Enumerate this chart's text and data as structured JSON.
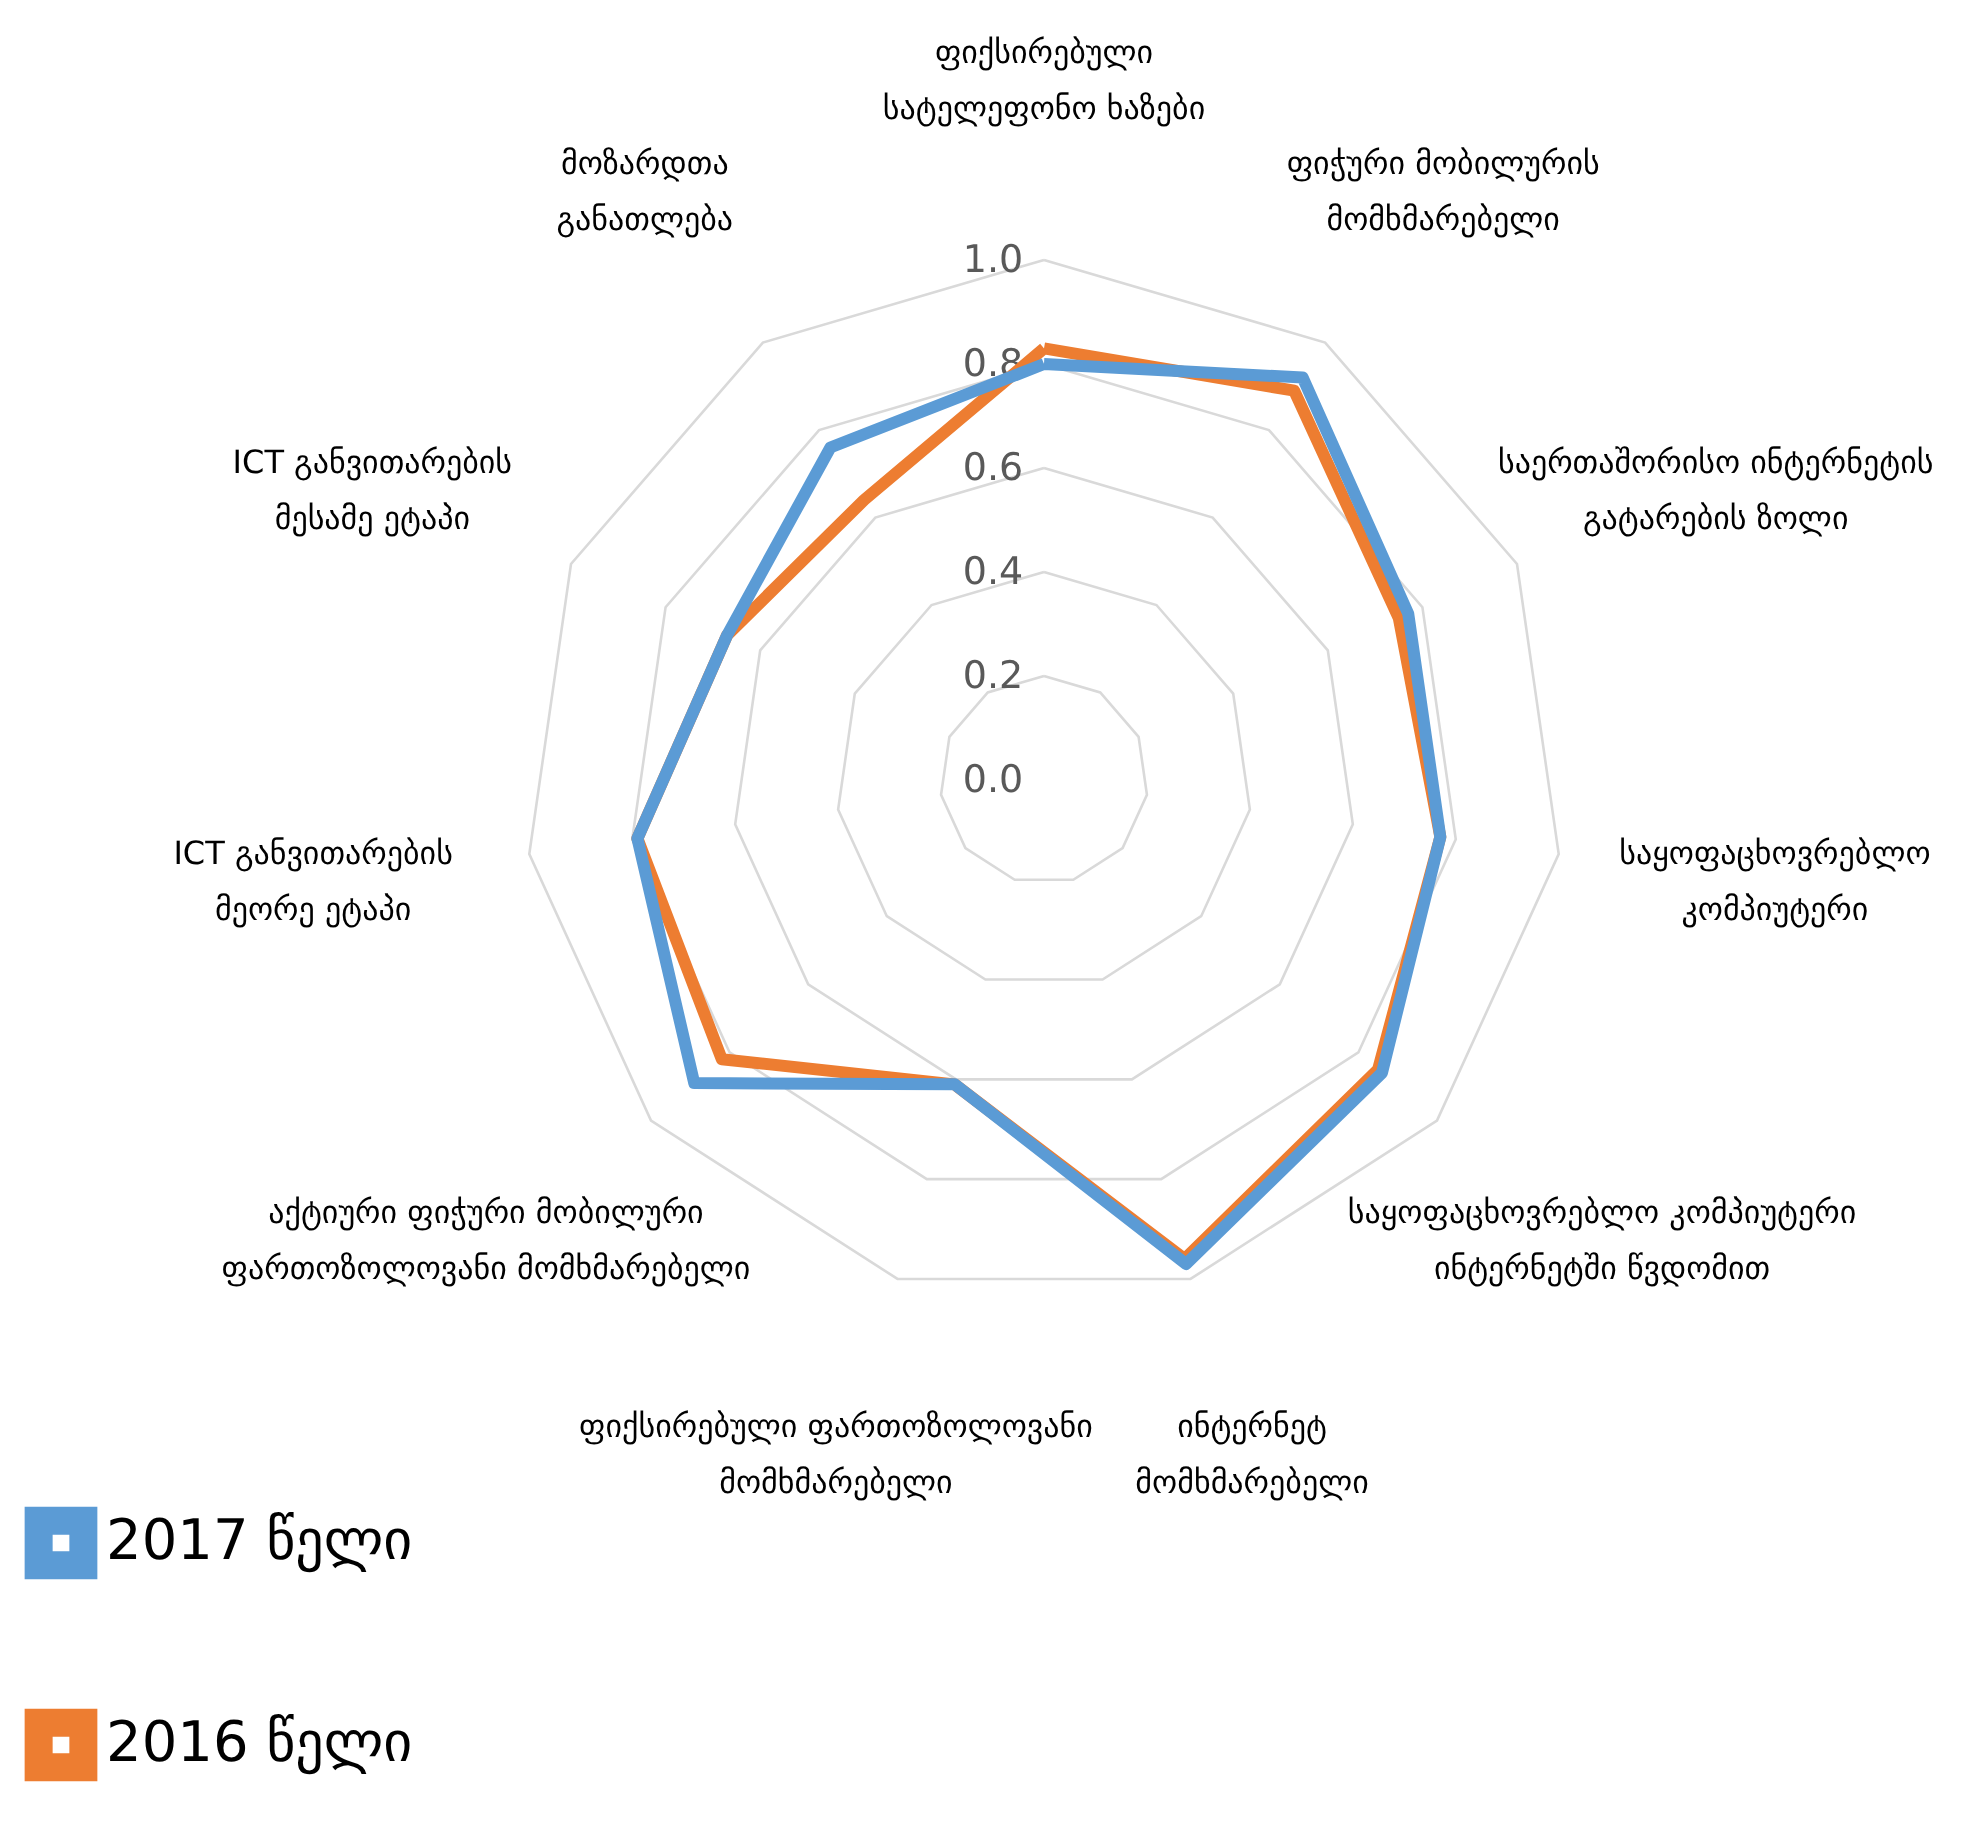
{
  "chart_data": {
    "type": "radar",
    "categories": [
      "ფიქსირებული სატელეფონო ხაზები",
      "ფიჭური მობილურის მომხმარებელი",
      "საერთაშორისო ინტერნეტის გატარების ზოლი",
      "საყოფაცხოვრებლო კომპიუტერი",
      "საყოფაცხოვრებლო კომპიუტერი ინტერნეტში წვდომით",
      "ინტერნეტ მომხმარებელი",
      "ფიქსირებული ფართოზოლოვანი მომხმარებელი",
      "აქტიური ფიჭური მობილური ფართოზოლოვანი მომხმარებელი",
      "ICT განვითარების მეორე ეტაპი",
      "ICT განვითარების მესამე ეტაპი",
      "მოზარდთა განათლება"
    ],
    "series": [
      {
        "name": "2017 წელი",
        "color": "#5b9bd5",
        "values": [
          0.8,
          0.92,
          0.77,
          0.77,
          0.86,
          0.97,
          0.61,
          0.89,
          0.79,
          0.67,
          0.76
        ]
      },
      {
        "name": "2016 წელი",
        "color": "#ed7d31",
        "values": [
          0.83,
          0.89,
          0.75,
          0.77,
          0.85,
          0.96,
          0.61,
          0.82,
          0.79,
          0.67,
          0.64
        ]
      }
    ],
    "ylim": [
      0,
      1
    ],
    "yticks": [
      {
        "value": 0,
        "label": "0.0"
      },
      {
        "value": 0.2,
        "label": "0.2"
      },
      {
        "value": 0.4,
        "label": "0.4"
      },
      {
        "value": 0.6,
        "label": "0.6"
      },
      {
        "value": 0.8,
        "label": "0.8"
      },
      {
        "value": 1,
        "label": "1.0"
      }
    ],
    "grid": true,
    "legend": "bottom left"
  }
}
